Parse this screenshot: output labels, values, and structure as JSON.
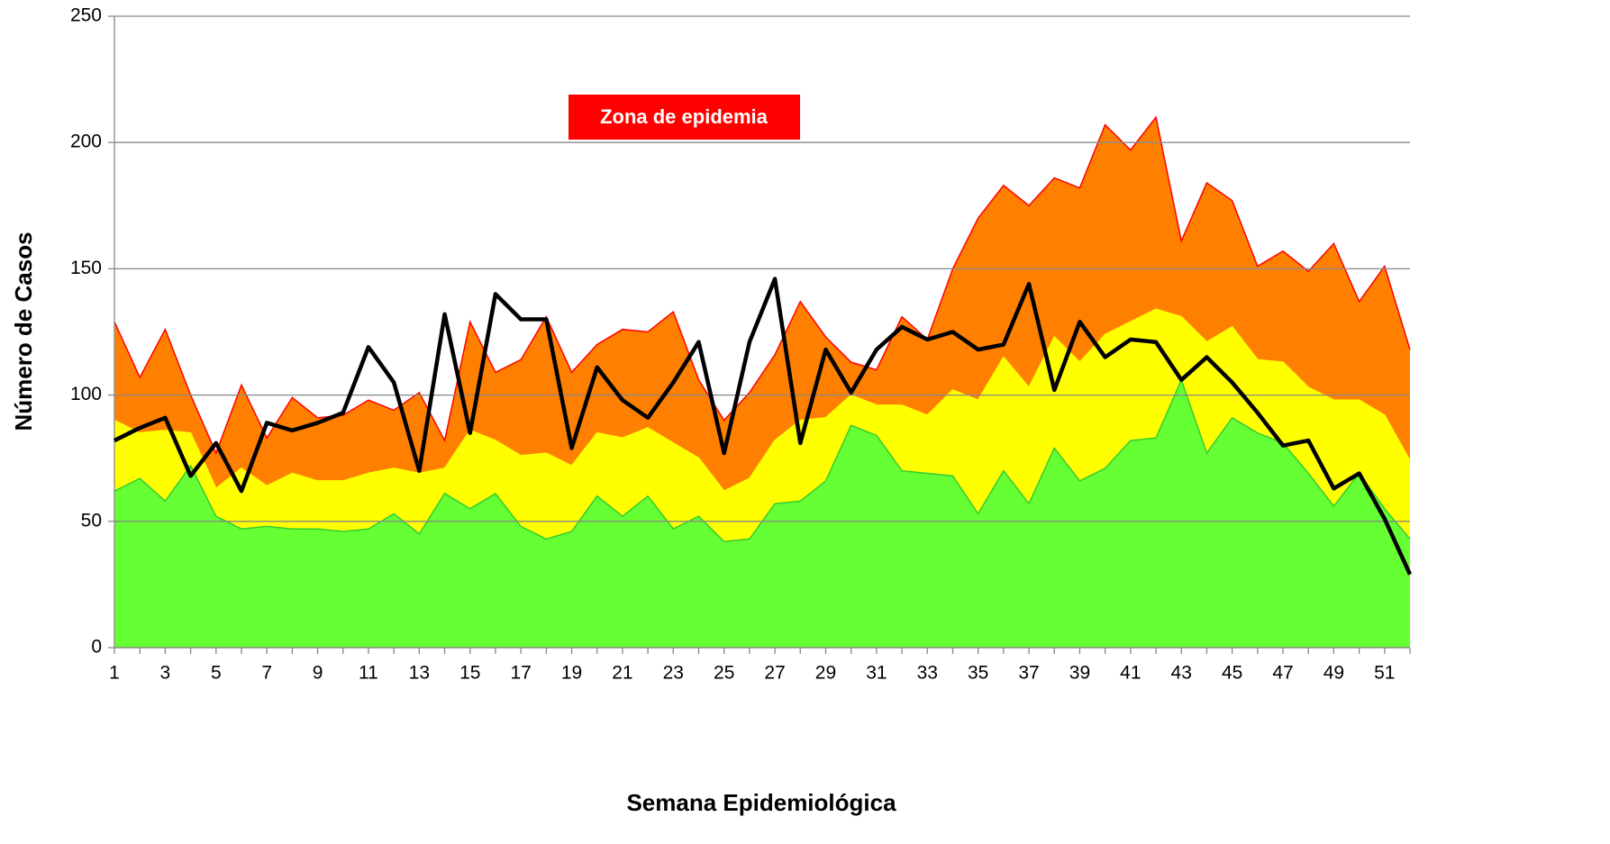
{
  "chart_data": {
    "type": "area",
    "x_label": "Semana Epidemiológica",
    "y_label": "Número de Casos",
    "annotation": "Zona de epidemia",
    "annotation_color": "#ff0000",
    "categories": [
      1,
      null,
      3,
      null,
      5,
      null,
      7,
      null,
      9,
      null,
      11,
      null,
      13,
      null,
      15,
      null,
      17,
      null,
      19,
      null,
      21,
      null,
      23,
      null,
      25,
      null,
      27,
      null,
      29,
      null,
      31,
      null,
      33,
      null,
      35,
      null,
      37,
      null,
      39,
      null,
      41,
      null,
      43,
      null,
      45,
      null,
      47,
      null,
      49,
      null,
      51,
      null
    ],
    "ylim": [
      0,
      250
    ],
    "yticks": [
      0,
      50,
      100,
      150,
      200,
      250
    ],
    "grid": true,
    "series": [
      {
        "type": "area",
        "color": "#ff8000",
        "edge": "#ff0000",
        "values": [
          129,
          107,
          126,
          100,
          77,
          104,
          83,
          99,
          91,
          92,
          98,
          94,
          101,
          82,
          129,
          109,
          114,
          131,
          109,
          120,
          126,
          125,
          133,
          106,
          90,
          101,
          116,
          137,
          123,
          113,
          110,
          131,
          122,
          150,
          170,
          183,
          175,
          186,
          182,
          207,
          197,
          210,
          161,
          184,
          177,
          151,
          157,
          149,
          160,
          137,
          151,
          118
        ]
      },
      {
        "type": "area",
        "color": "#ffff00",
        "edge": "#ffff00",
        "values": [
          90,
          85,
          86,
          85,
          63,
          71,
          64,
          69,
          66,
          66,
          69,
          71,
          69,
          71,
          86,
          82,
          76,
          77,
          72,
          85,
          83,
          87,
          81,
          75,
          62,
          67,
          82,
          90,
          91,
          100,
          96,
          96,
          92,
          102,
          98,
          115,
          103,
          123,
          113,
          124,
          129,
          134,
          131,
          121,
          127,
          114,
          113,
          103,
          98,
          98,
          92,
          74
        ]
      },
      {
        "type": "area",
        "color": "#66ff33",
        "edge": "#33cc33",
        "values": [
          62,
          67,
          58,
          72,
          52,
          47,
          48,
          47,
          47,
          46,
          47,
          53,
          45,
          61,
          55,
          61,
          48,
          43,
          46,
          60,
          52,
          60,
          47,
          52,
          42,
          43,
          57,
          58,
          66,
          88,
          84,
          70,
          69,
          68,
          53,
          70,
          57,
          79,
          66,
          71,
          82,
          83,
          106,
          77,
          91,
          85,
          81,
          69,
          56,
          69,
          55,
          43
        ]
      },
      {
        "type": "line",
        "color": "#000000",
        "values": [
          82,
          87,
          91,
          68,
          81,
          62,
          89,
          86,
          89,
          93,
          119,
          105,
          70,
          132,
          85,
          140,
          130,
          130,
          79,
          111,
          98,
          91,
          105,
          121,
          77,
          121,
          146,
          81,
          118,
          101,
          118,
          127,
          122,
          125,
          118,
          120,
          144,
          102,
          129,
          115,
          122,
          121,
          106,
          115,
          105,
          93,
          80,
          82,
          63,
          69,
          51,
          29
        ]
      }
    ]
  }
}
